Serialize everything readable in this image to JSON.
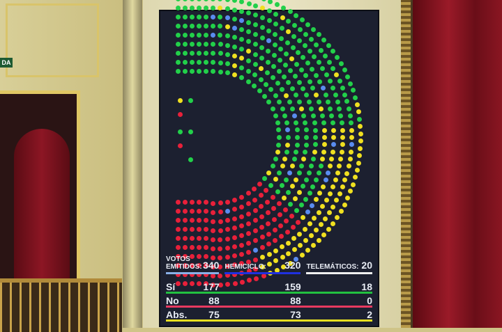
{
  "sign": "DA",
  "colors": {
    "yes": "#22d04a",
    "no": "#e8203a",
    "abs": "#f0e020",
    "remote": "#5a8cf0",
    "screen": "#1c2030"
  },
  "board": {
    "votos_label": "VOTOS",
    "emitidos_label": "EMITIDOS:",
    "emitidos": "340",
    "hemiciclo_label": "HEMICICLO:",
    "hemiciclo": "320",
    "telematicos_label": "TELEMÁTICOS:",
    "telematicos": "20",
    "rows": [
      {
        "label": "Sí",
        "total": "177",
        "hemiciclo": "159",
        "telematicos": "18"
      },
      {
        "label": "No",
        "total": "88",
        "hemiciclo": "88",
        "telematicos": "0"
      },
      {
        "label": "Abs.",
        "total": "75",
        "hemiciclo": "73",
        "telematicos": "2"
      }
    ]
  }
}
